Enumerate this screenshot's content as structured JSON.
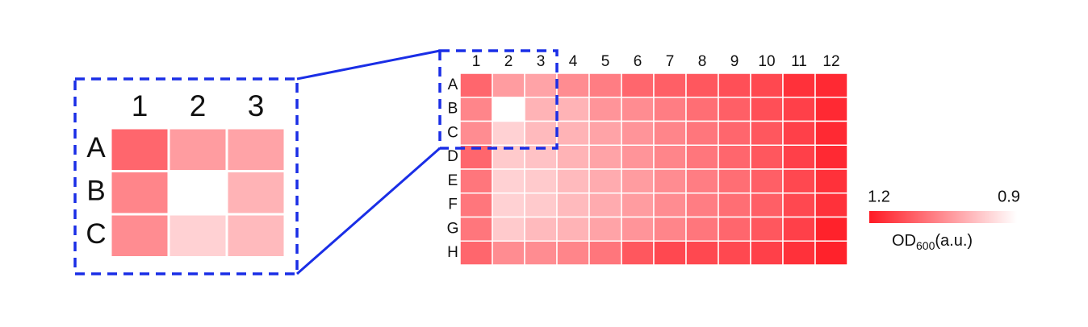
{
  "chart_data": {
    "type": "heatmap",
    "columns": [
      "1",
      "2",
      "3",
      "4",
      "5",
      "6",
      "7",
      "8",
      "9",
      "10",
      "11",
      "12"
    ],
    "rows": [
      "A",
      "B",
      "C",
      "D",
      "E",
      "F",
      "G",
      "H"
    ],
    "values": [
      [
        1.1,
        1.03,
        1.02,
        1.05,
        1.07,
        1.1,
        1.11,
        1.12,
        1.13,
        1.14,
        1.17,
        1.18
      ],
      [
        1.06,
        0.9,
        1.0,
        1.0,
        1.04,
        1.05,
        1.07,
        1.09,
        1.11,
        1.13,
        1.15,
        1.18
      ],
      [
        1.05,
        0.96,
        0.99,
        1.0,
        1.02,
        1.04,
        1.06,
        1.08,
        1.1,
        1.12,
        1.15,
        1.18
      ],
      [
        1.1,
        0.97,
        0.98,
        1.0,
        1.02,
        1.04,
        1.06,
        1.08,
        1.1,
        1.12,
        1.15,
        1.18
      ],
      [
        1.08,
        0.96,
        0.97,
        0.99,
        1.01,
        1.03,
        1.05,
        1.07,
        1.09,
        1.11,
        1.14,
        1.17
      ],
      [
        1.08,
        0.96,
        0.97,
        0.99,
        1.01,
        1.03,
        1.05,
        1.07,
        1.09,
        1.11,
        1.14,
        1.17
      ],
      [
        1.08,
        0.97,
        0.99,
        1.0,
        1.02,
        1.04,
        1.06,
        1.08,
        1.1,
        1.12,
        1.15,
        1.19
      ],
      [
        1.1,
        1.05,
        1.05,
        1.06,
        1.08,
        1.12,
        1.14,
        1.14,
        1.14,
        1.15,
        1.17,
        1.19
      ]
    ],
    "clim": [
      1.2,
      0.9
    ],
    "cmap": [
      "#ff1a24",
      "#ffffff"
    ],
    "colorbar_label": [
      "OD",
      "600",
      "(a.u.)"
    ],
    "inset_rows": 3,
    "inset_columns": 3
  }
}
